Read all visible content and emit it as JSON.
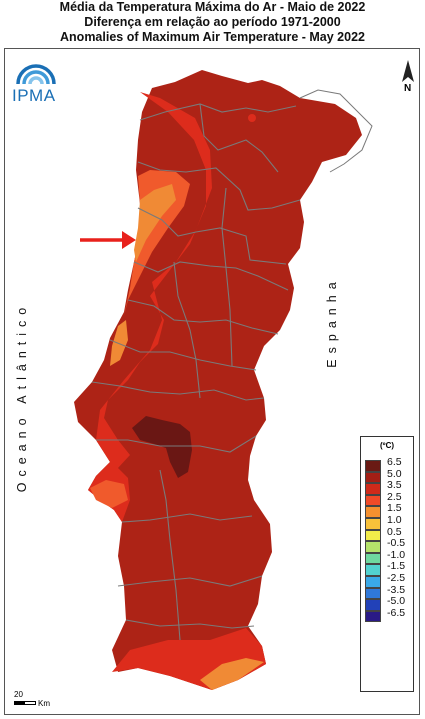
{
  "titles": {
    "line1": "Média da Temperatura Máxima do Ar - Maio de 2022",
    "line2": "Diferença em relação ao período 1971-2000",
    "line3": "Anomalies of Maximum Air Temperature - May 2022"
  },
  "labels": {
    "ocean": "Oceano Atlântico",
    "spain": "Espanha",
    "logo": "IPMA",
    "north": "N",
    "scale_value": "20",
    "scale_unit": "Km"
  },
  "legend": {
    "unit": "(ºC)",
    "entries": [
      {
        "label": "6.5",
        "color": "#6a1a14"
      },
      {
        "label": "5.0",
        "color": "#a31f15"
      },
      {
        "label": "3.5",
        "color": "#cf2a1a"
      },
      {
        "label": "2.5",
        "color": "#f04a28"
      },
      {
        "label": "1.5",
        "color": "#f5902f"
      },
      {
        "label": "1.0",
        "color": "#f8c13a"
      },
      {
        "label": "0.5",
        "color": "#f2ec4a"
      },
      {
        "label": "-0.5",
        "color": "#b5e36a"
      },
      {
        "label": "-1.0",
        "color": "#6fd9a0"
      },
      {
        "label": "-1.5",
        "color": "#52d2d0"
      },
      {
        "label": "-2.5",
        "color": "#3aa9e8"
      },
      {
        "label": "-3.5",
        "color": "#2f78d9"
      },
      {
        "label": "-5.0",
        "color": "#2241b8"
      },
      {
        "label": "-6.5",
        "color": "#2a1a86"
      }
    ]
  },
  "colors": {
    "base": "#ad2316",
    "anomaly_3_5": "#dd2c1c",
    "anomaly_2_5": "#f05a2c",
    "anomaly_1_5": "#f08a35",
    "anomaly_6_5": "#6a1714",
    "border": "#7a7a7a",
    "arrow": "#e8211c"
  }
}
